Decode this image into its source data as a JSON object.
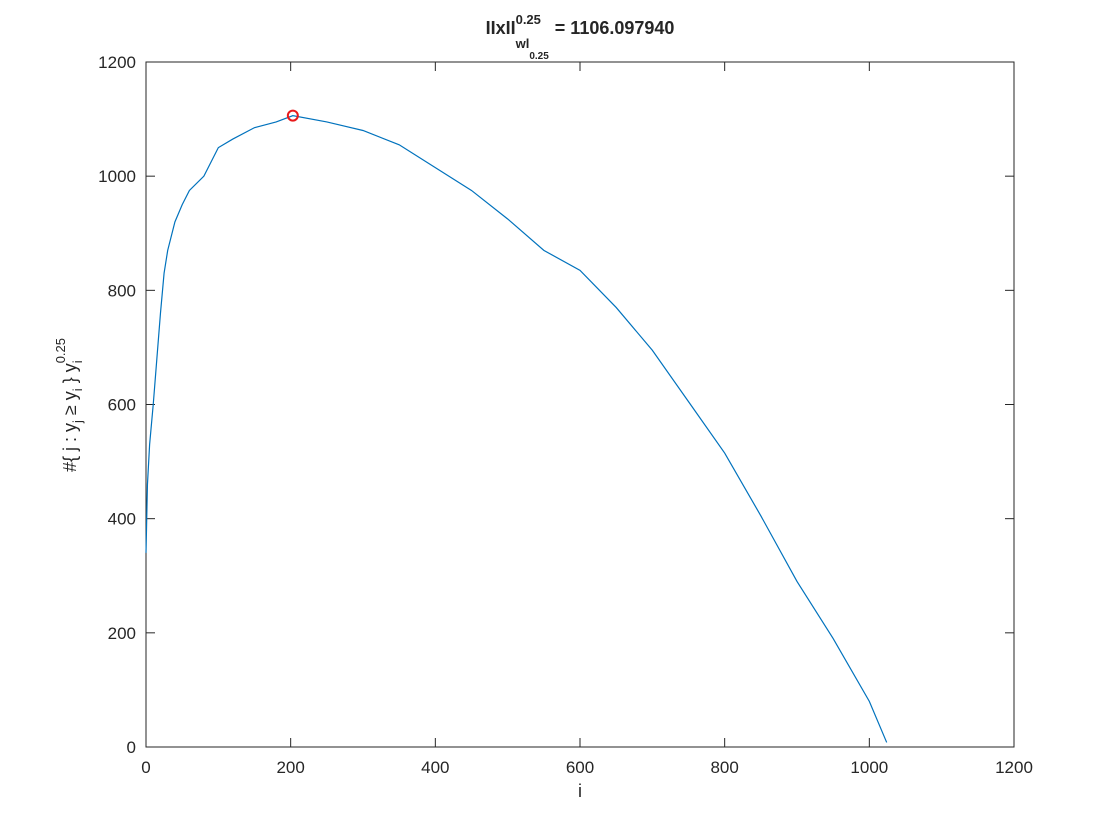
{
  "chart_data": {
    "type": "line",
    "title_parts": [
      "IIxII",
      "0.25",
      "wl",
      "0.25",
      "= 1106.097940"
    ],
    "xlabel": "i",
    "ylabel_parts": [
      "#{ j : y",
      "j",
      " ≥ y",
      "i",
      " } y",
      "i",
      "0.25"
    ],
    "x": [
      0,
      2,
      5,
      10,
      15,
      20,
      25,
      30,
      40,
      50,
      60,
      80,
      100,
      120,
      150,
      180,
      203,
      250,
      300,
      350,
      400,
      450,
      500,
      550,
      600,
      650,
      700,
      750,
      800,
      850,
      900,
      950,
      1000,
      1024
    ],
    "series": [
      {
        "name": "y",
        "color": "#0072bd",
        "values": [
          340,
          460,
          530,
          600,
          680,
          760,
          830,
          870,
          920,
          950,
          975,
          1000,
          1050,
          1065,
          1085,
          1095,
          1106,
          1095,
          1080,
          1055,
          1015,
          975,
          925,
          870,
          835,
          770,
          695,
          605,
          515,
          405,
          290,
          190,
          80,
          8
        ]
      }
    ],
    "marker": {
      "x": 203,
      "y": 1106.09794,
      "color": "#e8191b"
    },
    "xlim": [
      0,
      1200
    ],
    "xticks": [
      0,
      200,
      400,
      600,
      800,
      1000,
      1200
    ],
    "ylim": [
      0,
      1200
    ],
    "yticks": [
      0,
      200,
      400,
      600,
      800,
      1000,
      1200
    ],
    "grid": false
  }
}
